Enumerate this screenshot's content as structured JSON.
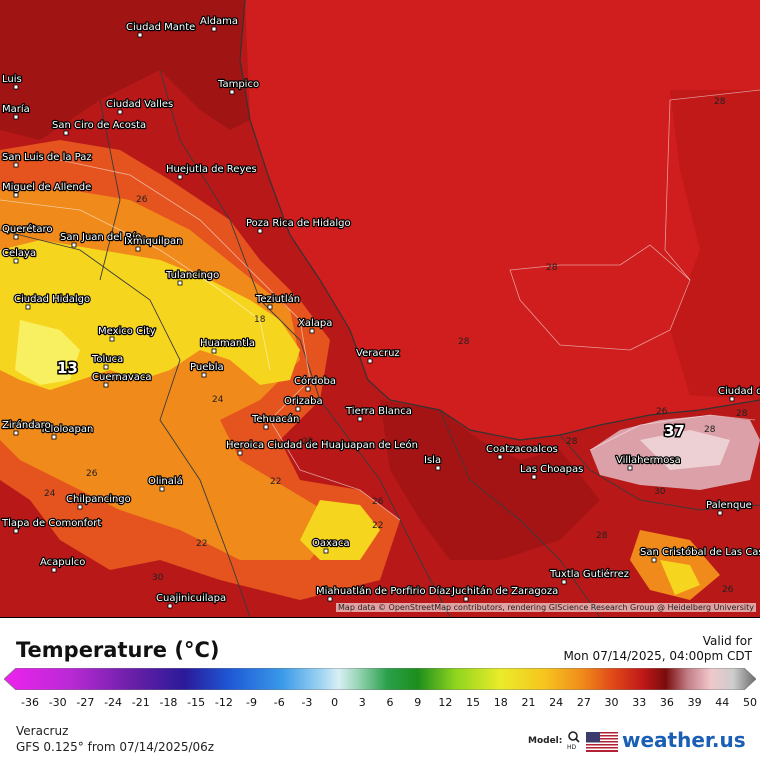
{
  "map": {
    "attribution": "Map data © OpenStreetMap contributors, rendering GIScience Research Group @ Heidelberg University",
    "cities": [
      {
        "name": "Aldama"
      },
      {
        "name": "Ciudad Mante"
      },
      {
        "name": "Tampico"
      },
      {
        "name": "Ciudad Valles"
      },
      {
        "name": "Luis"
      },
      {
        "name": "María"
      },
      {
        "name": "San Ciro de Acosta"
      },
      {
        "name": "San Luis de la Paz"
      },
      {
        "name": "Miguel de Allende"
      },
      {
        "name": "Huejutla de Reyes"
      },
      {
        "name": "Poza Rica de Hidalgo"
      },
      {
        "name": "Querétaro"
      },
      {
        "name": "San Juan del Río"
      },
      {
        "name": "Ixmiquilpan"
      },
      {
        "name": "Celaya"
      },
      {
        "name": "Tulancingo"
      },
      {
        "name": "Ciudad Hidalgo"
      },
      {
        "name": "Teziutlán"
      },
      {
        "name": "Xalapa"
      },
      {
        "name": "Mexico City"
      },
      {
        "name": "Toluca"
      },
      {
        "name": "Cuernavaca"
      },
      {
        "name": "Huamantla"
      },
      {
        "name": "Puebla"
      },
      {
        "name": "Veracruz"
      },
      {
        "name": "Córdoba"
      },
      {
        "name": "Orizaba"
      },
      {
        "name": "Tierra Blanca"
      },
      {
        "name": "Tehuacán"
      },
      {
        "name": "Teloloapan"
      },
      {
        "name": "Zirándaro"
      },
      {
        "name": "Heroica Ciudad de Huajuapan de León"
      },
      {
        "name": "Isla"
      },
      {
        "name": "Coatzacoalcos"
      },
      {
        "name": "Las Choapas"
      },
      {
        "name": "Villahermosa"
      },
      {
        "name": "Ciudad del Carmen"
      },
      {
        "name": "Olinalá"
      },
      {
        "name": "Chilpancingo"
      },
      {
        "name": "Tlapa de Comonfort"
      },
      {
        "name": "Oaxaca"
      },
      {
        "name": "Palenque"
      },
      {
        "name": "Acapulco"
      },
      {
        "name": "Cuajinicuilapa"
      },
      {
        "name": "Miahuatlán de Porfirio Díaz"
      },
      {
        "name": "Juchitán de Zaragoza"
      },
      {
        "name": "Tuxtla Gutiérrez"
      },
      {
        "name": "San Cristóbal de Las Casas"
      }
    ],
    "isotherm_labels": [
      "28",
      "28",
      "28",
      "28",
      "18",
      "26",
      "24",
      "22",
      "24",
      "26",
      "22",
      "26",
      "22",
      "30",
      "22",
      "28",
      "30",
      "28",
      "26",
      "26",
      "28"
    ],
    "extrema": {
      "low": "13",
      "high": "37"
    }
  },
  "legend": {
    "title": "Temperature (°C)",
    "valid_label": "Valid for",
    "valid_time": "Mon 07/14/2025, 04:00pm CDT",
    "ticks": [
      "-36",
      "-30",
      "-27",
      "-24",
      "-21",
      "-18",
      "-15",
      "-12",
      "-9",
      "-6",
      "-3",
      "0",
      "3",
      "6",
      "9",
      "12",
      "15",
      "18",
      "21",
      "24",
      "27",
      "30",
      "33",
      "36",
      "39",
      "44",
      "50"
    ],
    "location": "Veracruz",
    "model_run": "GFS 0.125° from  07/14/2025/06z",
    "model_label": "Model:",
    "brand": "weather.us",
    "colors": {
      "sea": "#d01d1d",
      "warm_land": "#b81818",
      "hot_land": "#9c1212",
      "mid": "#e5531e",
      "orange": "#f08a1a",
      "yellow": "#f6d51e",
      "pink": "#dba0a8",
      "brand_blue": "#1a5fb4"
    }
  }
}
